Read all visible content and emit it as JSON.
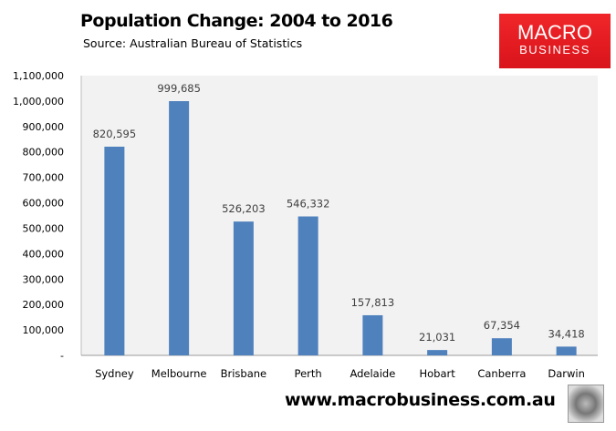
{
  "header": {
    "title": "Population Change: 2004 to 2016",
    "subtitle": "Source: Australian Bureau of Statistics"
  },
  "logo": {
    "line1": "MACRO",
    "line2": "BUSINESS"
  },
  "footer": {
    "url": "www.macrobusiness.com.au"
  },
  "colors": {
    "bar": "#4f81bd",
    "plot_bg": "#f2f2f2",
    "logo": "#e61e25"
  },
  "chart_data": {
    "type": "bar",
    "title": "Population Change: 2004 to 2016",
    "categories": [
      "Sydney",
      "Melbourne",
      "Brisbane",
      "Perth",
      "Adelaide",
      "Hobart",
      "Canberra",
      "Darwin"
    ],
    "values": [
      820595,
      999685,
      526203,
      546332,
      157813,
      21031,
      67354,
      34418
    ],
    "data_labels": [
      "820,595",
      "999,685",
      "526,203",
      "546,332",
      "157,813",
      "21,031",
      "67,354",
      "34,418"
    ],
    "ylim": [
      0,
      1100000
    ],
    "yticks": [
      0,
      100000,
      200000,
      300000,
      400000,
      500000,
      600000,
      700000,
      800000,
      900000,
      1000000,
      1100000
    ],
    "ytick_labels": [
      "-",
      "100,000",
      "200,000",
      "300,000",
      "400,000",
      "500,000",
      "600,000",
      "700,000",
      "800,000",
      "900,000",
      "1,000,000",
      "1,100,000"
    ],
    "xlabel": "",
    "ylabel": "",
    "grid": false,
    "legend": "none"
  }
}
